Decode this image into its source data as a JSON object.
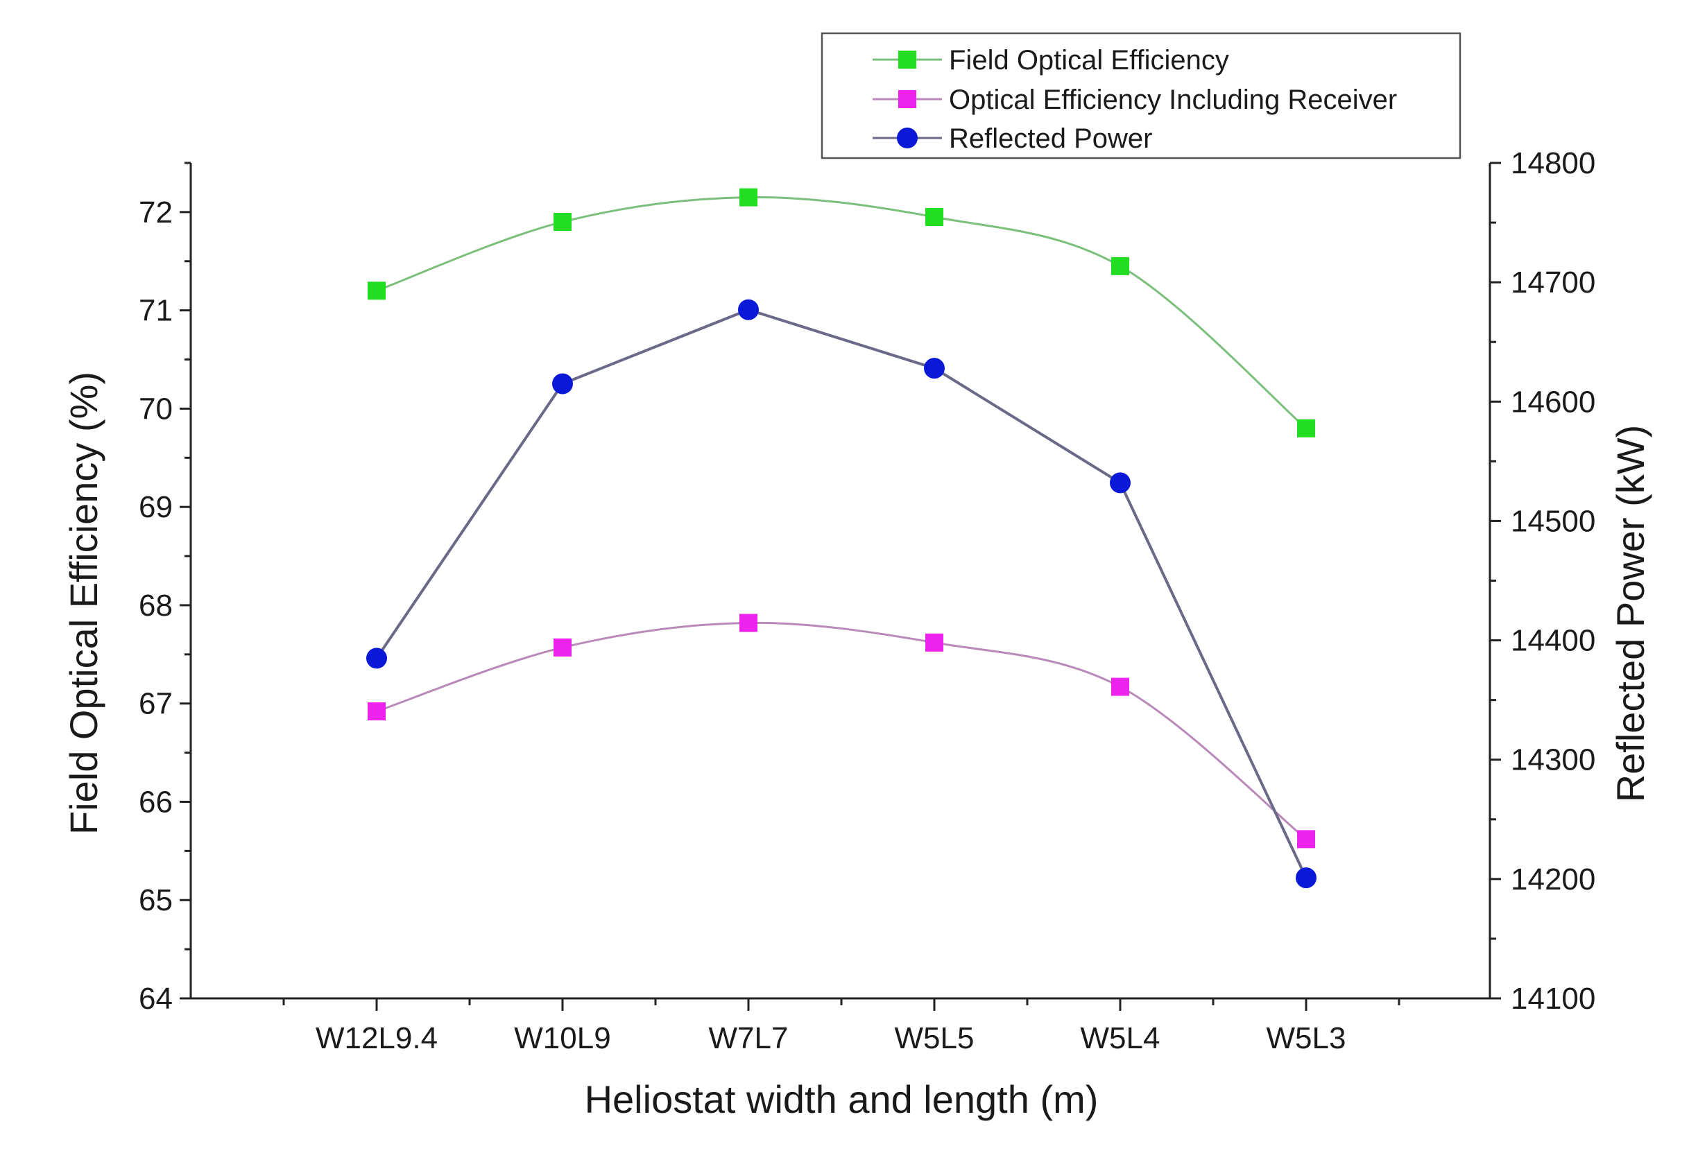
{
  "chart_data": {
    "type": "line",
    "title": "",
    "xlabel": "Heliostat width and length (m)",
    "ylabel": "Field Optical Efficiency (%)",
    "ylabel_right": "Reflected Power (kW)",
    "categories": [
      "W12L9.4",
      "W10L9",
      "W7L7",
      "W5L5",
      "W5L4",
      "W5L3"
    ],
    "ylim": [
      64,
      72.5
    ],
    "ylim_right": [
      14100,
      14800
    ],
    "yticks": [
      64,
      65,
      66,
      67,
      68,
      69,
      70,
      71,
      72
    ],
    "yticks_right": [
      14100,
      14200,
      14300,
      14400,
      14500,
      14600,
      14700,
      14800
    ],
    "grid": false,
    "legend_position": "top-right",
    "series": [
      {
        "name": "Field Optical Efficiency",
        "axis": "left",
        "marker": "square",
        "smooth": true,
        "color": "#22dd22",
        "line_color": "#7cbf7c",
        "values": [
          71.2,
          71.9,
          72.15,
          71.95,
          71.45,
          69.8
        ]
      },
      {
        "name": "Optical Efficiency Including Receiver",
        "axis": "left",
        "marker": "square",
        "smooth": true,
        "color": "#ee22ee",
        "line_color": "#b98ab9",
        "values": [
          66.92,
          67.57,
          67.82,
          67.62,
          67.17,
          65.62
        ]
      },
      {
        "name": "Reflected Power",
        "axis": "right",
        "marker": "circle",
        "smooth": false,
        "color": "#0a18d8",
        "line_color": "#6a6a88",
        "values": [
          14385,
          14615,
          14677,
          14628,
          14532,
          14201
        ]
      }
    ]
  }
}
